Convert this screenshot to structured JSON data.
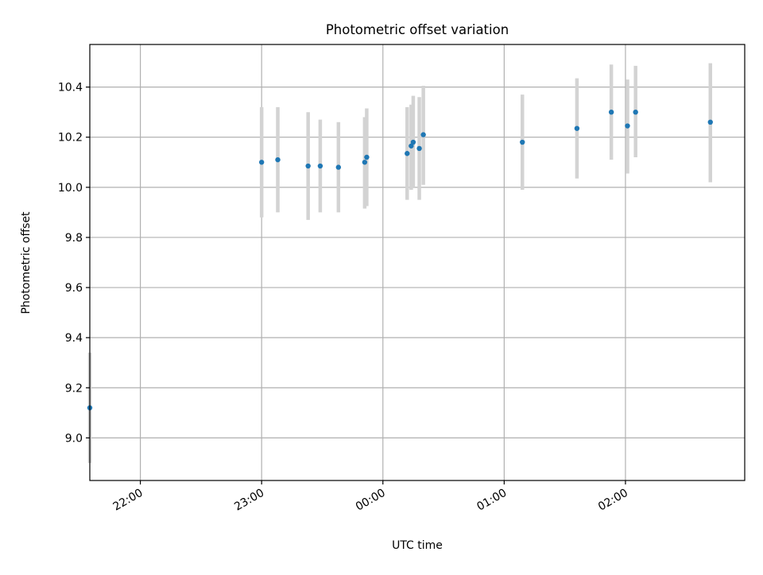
{
  "chart_data": {
    "type": "scatter",
    "title": "Photometric offset variation",
    "xlabel": "UTC time",
    "ylabel": "Photometric offset",
    "x_axis_type": "time",
    "xlim": [
      "21:35",
      "02:59"
    ],
    "ylim": [
      8.83,
      10.57
    ],
    "x_ticks": [
      "22:00",
      "23:00",
      "00:00",
      "01:00",
      "02:00"
    ],
    "y_ticks": [
      "9.0",
      "9.2",
      "9.4",
      "9.6",
      "9.8",
      "10.0",
      "10.2",
      "10.4"
    ],
    "grid": true,
    "legend": "none",
    "colors": {
      "point": "#1f77b4",
      "errorbar": "#d3d3d3",
      "grid": "#b0b0b0"
    },
    "points": [
      {
        "x": "21:35",
        "y": 9.12,
        "ylow": 8.9,
        "yhigh": 9.34
      },
      {
        "x": "23:00",
        "y": 10.1,
        "ylow": 9.88,
        "yhigh": 10.32
      },
      {
        "x": "23:08",
        "y": 10.11,
        "ylow": 9.9,
        "yhigh": 10.32
      },
      {
        "x": "23:23",
        "y": 10.085,
        "ylow": 9.87,
        "yhigh": 10.3
      },
      {
        "x": "23:29",
        "y": 10.085,
        "ylow": 9.9,
        "yhigh": 10.27
      },
      {
        "x": "23:38",
        "y": 10.08,
        "ylow": 9.9,
        "yhigh": 10.26
      },
      {
        "x": "23:51",
        "y": 10.1,
        "ylow": 9.915,
        "yhigh": 10.28
      },
      {
        "x": "23:52",
        "y": 10.12,
        "ylow": 9.925,
        "yhigh": 10.315
      },
      {
        "x": "00:12",
        "y": 10.135,
        "ylow": 9.95,
        "yhigh": 10.32
      },
      {
        "x": "00:14",
        "y": 10.165,
        "ylow": 9.99,
        "yhigh": 10.33
      },
      {
        "x": "00:15",
        "y": 10.18,
        "ylow": 10.0,
        "yhigh": 10.365
      },
      {
        "x": "00:18",
        "y": 10.155,
        "ylow": 9.95,
        "yhigh": 10.36
      },
      {
        "x": "00:20",
        "y": 10.21,
        "ylow": 10.01,
        "yhigh": 10.405
      },
      {
        "x": "01:09",
        "y": 10.18,
        "ylow": 9.99,
        "yhigh": 10.37
      },
      {
        "x": "01:36",
        "y": 10.235,
        "ylow": 10.035,
        "yhigh": 10.435
      },
      {
        "x": "01:53",
        "y": 10.3,
        "ylow": 10.11,
        "yhigh": 10.49
      },
      {
        "x": "02:01",
        "y": 10.245,
        "ylow": 10.055,
        "yhigh": 10.43
      },
      {
        "x": "02:05",
        "y": 10.3,
        "ylow": 10.12,
        "yhigh": 10.485
      },
      {
        "x": "02:42",
        "y": 10.26,
        "ylow": 10.02,
        "yhigh": 10.495
      }
    ]
  }
}
